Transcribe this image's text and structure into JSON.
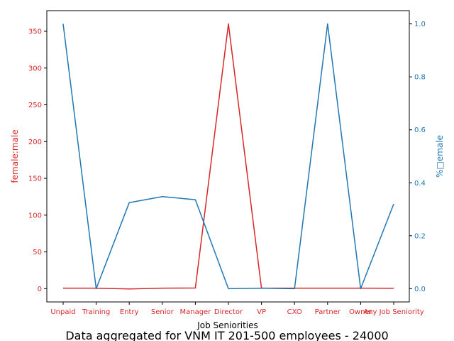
{
  "chart_data": {
    "type": "line",
    "title": "Data aggregated for VNM IT 201-500 employees - 24000",
    "xlabel": "Job Seniorities",
    "categories": [
      "Unpaid",
      "Training",
      "Entry",
      "Senior",
      "Manager",
      "Director",
      "VP",
      "CXO",
      "Partner",
      "Owner",
      "Any Job Seniority"
    ],
    "left_axis": {
      "label": "female:male",
      "color": "#d62728",
      "ylim": [
        -18,
        378
      ],
      "ticks": [
        0,
        50,
        100,
        150,
        200,
        250,
        300,
        350
      ]
    },
    "right_axis": {
      "label": "%⁠female",
      "label_display": "%□emale",
      "color": "#1f77b4",
      "ylim": [
        -0.05,
        1.05
      ],
      "ticks": [
        "0.0",
        "0.2",
        "0.4",
        "0.6",
        "0.8",
        "1.0"
      ]
    },
    "series": [
      {
        "axis": "left",
        "color": "#d62728",
        "values": [
          0.7,
          0.7,
          -0.4,
          0.7,
          0.9,
          360,
          0.7,
          0.7,
          0.7,
          0.7,
          0.5
        ]
      },
      {
        "axis": "right",
        "color": "#1f77b4",
        "values": [
          1.0,
          0.0,
          0.325,
          0.348,
          0.336,
          0.0,
          0.002,
          0.0,
          1.0,
          0.0,
          0.32
        ]
      }
    ],
    "grid": false
  }
}
